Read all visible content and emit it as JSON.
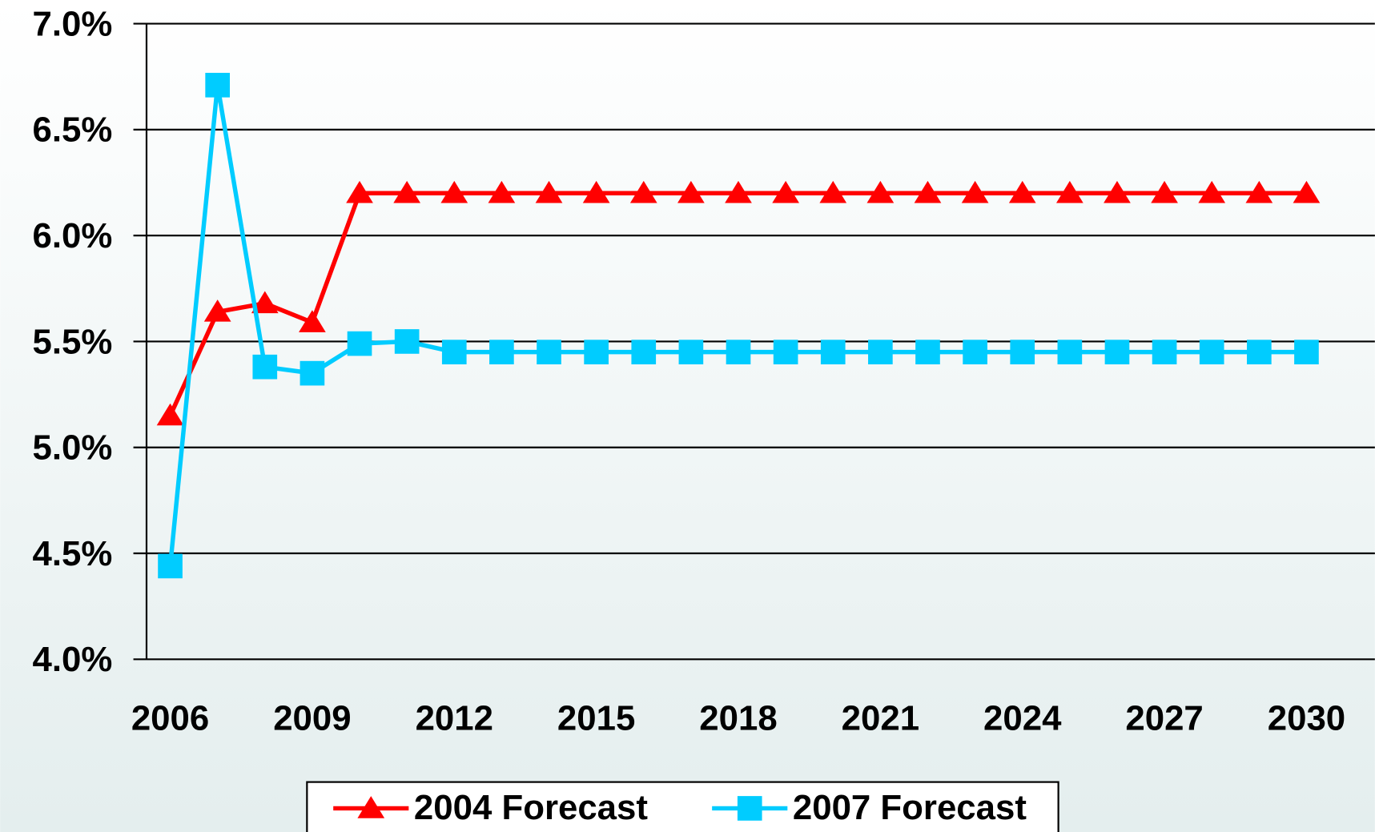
{
  "chart_data": {
    "type": "line",
    "x": [
      2006,
      2007,
      2008,
      2009,
      2010,
      2011,
      2012,
      2013,
      2014,
      2015,
      2016,
      2017,
      2018,
      2019,
      2020,
      2021,
      2022,
      2023,
      2024,
      2025,
      2026,
      2027,
      2028,
      2029,
      2030
    ],
    "series": [
      {
        "name": "2004 Forecast",
        "color": "#ff0000",
        "marker": "triangle",
        "values": [
          5.15,
          5.64,
          5.68,
          5.59,
          6.2,
          6.2,
          6.2,
          6.2,
          6.2,
          6.2,
          6.2,
          6.2,
          6.2,
          6.2,
          6.2,
          6.2,
          6.2,
          6.2,
          6.2,
          6.2,
          6.2,
          6.2,
          6.2,
          6.2,
          6.2
        ]
      },
      {
        "name": "2007 Forecast",
        "color": "#00ccff",
        "marker": "square",
        "values": [
          4.44,
          6.71,
          5.38,
          5.35,
          5.49,
          5.5,
          5.45,
          5.45,
          5.45,
          5.45,
          5.45,
          5.45,
          5.45,
          5.45,
          5.45,
          5.45,
          5.45,
          5.45,
          5.45,
          5.45,
          5.45,
          5.45,
          5.45,
          5.45,
          5.45
        ]
      }
    ],
    "xlim": [
      2005.5,
      2031.5
    ],
    "xticks": [
      2006,
      2009,
      2012,
      2015,
      2018,
      2021,
      2024,
      2027,
      2030
    ],
    "ylim": [
      4,
      7
    ],
    "yticks": [
      {
        "value": 4,
        "label": "4.0%"
      },
      {
        "value": 4.5,
        "label": "4.5%"
      },
      {
        "value": 5,
        "label": "5.0%"
      },
      {
        "value": 5.5,
        "label": "5.5%"
      },
      {
        "value": 6,
        "label": "6.0%"
      },
      {
        "value": 6.5,
        "label": "6.5%"
      },
      {
        "value": 7,
        "label": "7.0%"
      }
    ],
    "grid": true,
    "legend": "bottom"
  }
}
